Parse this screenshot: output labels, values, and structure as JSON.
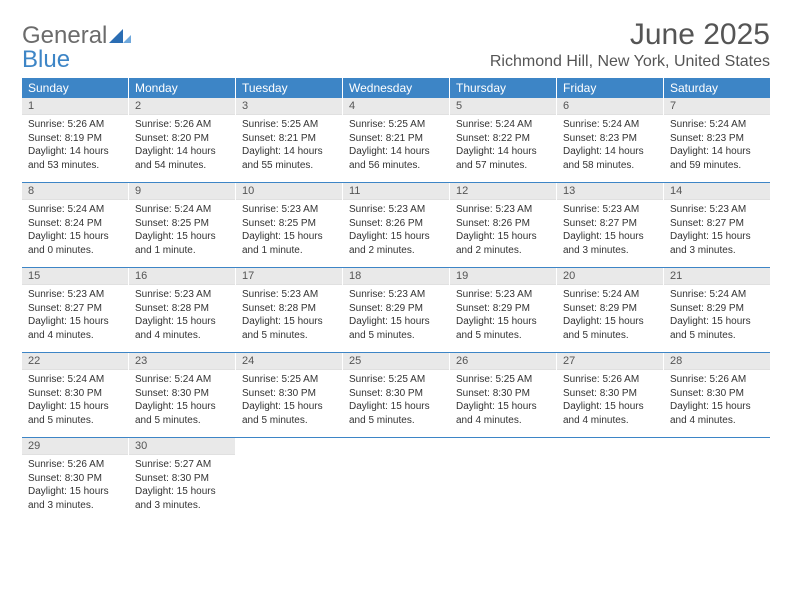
{
  "logo": {
    "part1": "General",
    "part2": "Blue"
  },
  "title": "June 2025",
  "location": "Richmond Hill, New York, United States",
  "colors": {
    "accent": "#3d85c6",
    "header_text": "#ffffff",
    "daynum_bg": "#e9e9e9",
    "text": "#333333"
  },
  "day_names": [
    "Sunday",
    "Monday",
    "Tuesday",
    "Wednesday",
    "Thursday",
    "Friday",
    "Saturday"
  ],
  "weeks": [
    [
      {
        "n": "1",
        "sr": "Sunrise: 5:26 AM",
        "ss": "Sunset: 8:19 PM",
        "dl": "Daylight: 14 hours and 53 minutes."
      },
      {
        "n": "2",
        "sr": "Sunrise: 5:26 AM",
        "ss": "Sunset: 8:20 PM",
        "dl": "Daylight: 14 hours and 54 minutes."
      },
      {
        "n": "3",
        "sr": "Sunrise: 5:25 AM",
        "ss": "Sunset: 8:21 PM",
        "dl": "Daylight: 14 hours and 55 minutes."
      },
      {
        "n": "4",
        "sr": "Sunrise: 5:25 AM",
        "ss": "Sunset: 8:21 PM",
        "dl": "Daylight: 14 hours and 56 minutes."
      },
      {
        "n": "5",
        "sr": "Sunrise: 5:24 AM",
        "ss": "Sunset: 8:22 PM",
        "dl": "Daylight: 14 hours and 57 minutes."
      },
      {
        "n": "6",
        "sr": "Sunrise: 5:24 AM",
        "ss": "Sunset: 8:23 PM",
        "dl": "Daylight: 14 hours and 58 minutes."
      },
      {
        "n": "7",
        "sr": "Sunrise: 5:24 AM",
        "ss": "Sunset: 8:23 PM",
        "dl": "Daylight: 14 hours and 59 minutes."
      }
    ],
    [
      {
        "n": "8",
        "sr": "Sunrise: 5:24 AM",
        "ss": "Sunset: 8:24 PM",
        "dl": "Daylight: 15 hours and 0 minutes."
      },
      {
        "n": "9",
        "sr": "Sunrise: 5:24 AM",
        "ss": "Sunset: 8:25 PM",
        "dl": "Daylight: 15 hours and 1 minute."
      },
      {
        "n": "10",
        "sr": "Sunrise: 5:23 AM",
        "ss": "Sunset: 8:25 PM",
        "dl": "Daylight: 15 hours and 1 minute."
      },
      {
        "n": "11",
        "sr": "Sunrise: 5:23 AM",
        "ss": "Sunset: 8:26 PM",
        "dl": "Daylight: 15 hours and 2 minutes."
      },
      {
        "n": "12",
        "sr": "Sunrise: 5:23 AM",
        "ss": "Sunset: 8:26 PM",
        "dl": "Daylight: 15 hours and 2 minutes."
      },
      {
        "n": "13",
        "sr": "Sunrise: 5:23 AM",
        "ss": "Sunset: 8:27 PM",
        "dl": "Daylight: 15 hours and 3 minutes."
      },
      {
        "n": "14",
        "sr": "Sunrise: 5:23 AM",
        "ss": "Sunset: 8:27 PM",
        "dl": "Daylight: 15 hours and 3 minutes."
      }
    ],
    [
      {
        "n": "15",
        "sr": "Sunrise: 5:23 AM",
        "ss": "Sunset: 8:27 PM",
        "dl": "Daylight: 15 hours and 4 minutes."
      },
      {
        "n": "16",
        "sr": "Sunrise: 5:23 AM",
        "ss": "Sunset: 8:28 PM",
        "dl": "Daylight: 15 hours and 4 minutes."
      },
      {
        "n": "17",
        "sr": "Sunrise: 5:23 AM",
        "ss": "Sunset: 8:28 PM",
        "dl": "Daylight: 15 hours and 5 minutes."
      },
      {
        "n": "18",
        "sr": "Sunrise: 5:23 AM",
        "ss": "Sunset: 8:29 PM",
        "dl": "Daylight: 15 hours and 5 minutes."
      },
      {
        "n": "19",
        "sr": "Sunrise: 5:23 AM",
        "ss": "Sunset: 8:29 PM",
        "dl": "Daylight: 15 hours and 5 minutes."
      },
      {
        "n": "20",
        "sr": "Sunrise: 5:24 AM",
        "ss": "Sunset: 8:29 PM",
        "dl": "Daylight: 15 hours and 5 minutes."
      },
      {
        "n": "21",
        "sr": "Sunrise: 5:24 AM",
        "ss": "Sunset: 8:29 PM",
        "dl": "Daylight: 15 hours and 5 minutes."
      }
    ],
    [
      {
        "n": "22",
        "sr": "Sunrise: 5:24 AM",
        "ss": "Sunset: 8:30 PM",
        "dl": "Daylight: 15 hours and 5 minutes."
      },
      {
        "n": "23",
        "sr": "Sunrise: 5:24 AM",
        "ss": "Sunset: 8:30 PM",
        "dl": "Daylight: 15 hours and 5 minutes."
      },
      {
        "n": "24",
        "sr": "Sunrise: 5:25 AM",
        "ss": "Sunset: 8:30 PM",
        "dl": "Daylight: 15 hours and 5 minutes."
      },
      {
        "n": "25",
        "sr": "Sunrise: 5:25 AM",
        "ss": "Sunset: 8:30 PM",
        "dl": "Daylight: 15 hours and 5 minutes."
      },
      {
        "n": "26",
        "sr": "Sunrise: 5:25 AM",
        "ss": "Sunset: 8:30 PM",
        "dl": "Daylight: 15 hours and 4 minutes."
      },
      {
        "n": "27",
        "sr": "Sunrise: 5:26 AM",
        "ss": "Sunset: 8:30 PM",
        "dl": "Daylight: 15 hours and 4 minutes."
      },
      {
        "n": "28",
        "sr": "Sunrise: 5:26 AM",
        "ss": "Sunset: 8:30 PM",
        "dl": "Daylight: 15 hours and 4 minutes."
      }
    ],
    [
      {
        "n": "29",
        "sr": "Sunrise: 5:26 AM",
        "ss": "Sunset: 8:30 PM",
        "dl": "Daylight: 15 hours and 3 minutes."
      },
      {
        "n": "30",
        "sr": "Sunrise: 5:27 AM",
        "ss": "Sunset: 8:30 PM",
        "dl": "Daylight: 15 hours and 3 minutes."
      },
      {
        "empty": true
      },
      {
        "empty": true
      },
      {
        "empty": true
      },
      {
        "empty": true
      },
      {
        "empty": true
      }
    ]
  ]
}
